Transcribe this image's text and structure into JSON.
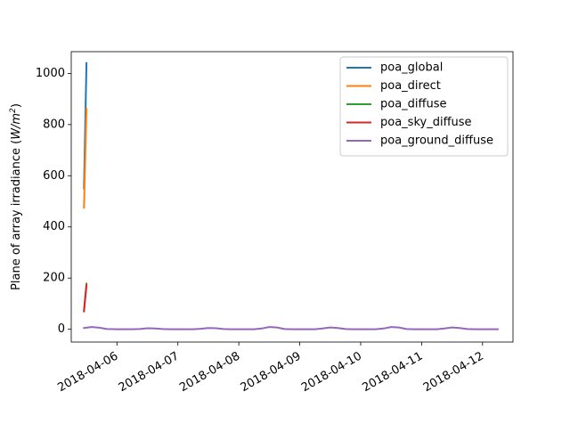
{
  "chart_data": {
    "type": "line",
    "title": "",
    "xlabel": "",
    "ylabel": "Plane of array irradiance (W/m²)",
    "ylabel_parts": {
      "main": "Plane of array irradiance (",
      "unit_a": "W/m",
      "unit_sup": "2",
      "close": ")"
    },
    "xlim": [
      "2018-04-05 06:00",
      "2018-04-12 12:00"
    ],
    "ylim": [
      -50,
      1085
    ],
    "yticks": [
      0,
      200,
      400,
      600,
      800,
      1000
    ],
    "xticks": [
      "2018-04-06",
      "2018-04-07",
      "2018-04-08",
      "2018-04-09",
      "2018-04-10",
      "2018-04-11",
      "2018-04-12"
    ],
    "grid": false,
    "legend_position": "top-right",
    "series": [
      {
        "name": "poa_global",
        "color": "#1f77b4",
        "points": [
          [
            "2018-04-05 11:00",
            550
          ],
          [
            "2018-04-05 12:00",
            1040
          ]
        ]
      },
      {
        "name": "poa_direct",
        "color": "#ff7f0e",
        "points": [
          [
            "2018-04-05 11:00",
            475
          ],
          [
            "2018-04-05 12:00",
            862
          ]
        ]
      },
      {
        "name": "poa_diffuse",
        "color": "#2ca02c",
        "points": [
          [
            "2018-04-05 11:00",
            72
          ],
          [
            "2018-04-05 12:00",
            178
          ]
        ]
      },
      {
        "name": "poa_sky_diffuse",
        "color": "#d62728",
        "points": [
          [
            "2018-04-05 11:00",
            70
          ],
          [
            "2018-04-05 12:00",
            172
          ]
        ]
      },
      {
        "name": "poa_ground_diffuse",
        "color": "#9467bd",
        "points": [
          [
            "2018-04-05 11:00",
            5
          ],
          [
            "2018-04-05 14:00",
            9
          ],
          [
            "2018-04-05 17:00",
            6
          ],
          [
            "2018-04-05 20:00",
            1
          ],
          [
            "2018-04-06 00:00",
            0
          ],
          [
            "2018-04-06 06:00",
            0
          ],
          [
            "2018-04-06 09:00",
            1
          ],
          [
            "2018-04-06 12:00",
            4
          ],
          [
            "2018-04-06 15:00",
            3
          ],
          [
            "2018-04-06 18:00",
            1
          ],
          [
            "2018-04-06 21:00",
            0
          ],
          [
            "2018-04-07 06:00",
            0
          ],
          [
            "2018-04-07 09:00",
            2
          ],
          [
            "2018-04-07 12:00",
            5
          ],
          [
            "2018-04-07 15:00",
            4
          ],
          [
            "2018-04-07 18:00",
            1
          ],
          [
            "2018-04-07 21:00",
            0
          ],
          [
            "2018-04-08 06:00",
            0
          ],
          [
            "2018-04-08 09:00",
            3
          ],
          [
            "2018-04-08 12:00",
            9
          ],
          [
            "2018-04-08 15:00",
            7
          ],
          [
            "2018-04-08 18:00",
            1
          ],
          [
            "2018-04-08 21:00",
            0
          ],
          [
            "2018-04-09 06:00",
            0
          ],
          [
            "2018-04-09 09:00",
            3
          ],
          [
            "2018-04-09 12:00",
            7
          ],
          [
            "2018-04-09 15:00",
            5
          ],
          [
            "2018-04-09 18:00",
            1
          ],
          [
            "2018-04-09 21:00",
            0
          ],
          [
            "2018-04-10 06:00",
            0
          ],
          [
            "2018-04-10 09:00",
            3
          ],
          [
            "2018-04-10 12:00",
            9
          ],
          [
            "2018-04-10 15:00",
            7
          ],
          [
            "2018-04-10 18:00",
            1
          ],
          [
            "2018-04-10 21:00",
            0
          ],
          [
            "2018-04-11 06:00",
            0
          ],
          [
            "2018-04-11 09:00",
            3
          ],
          [
            "2018-04-11 12:00",
            7
          ],
          [
            "2018-04-11 15:00",
            5
          ],
          [
            "2018-04-11 18:00",
            1
          ],
          [
            "2018-04-11 21:00",
            0
          ],
          [
            "2018-04-12 06:00",
            0
          ]
        ]
      }
    ]
  }
}
